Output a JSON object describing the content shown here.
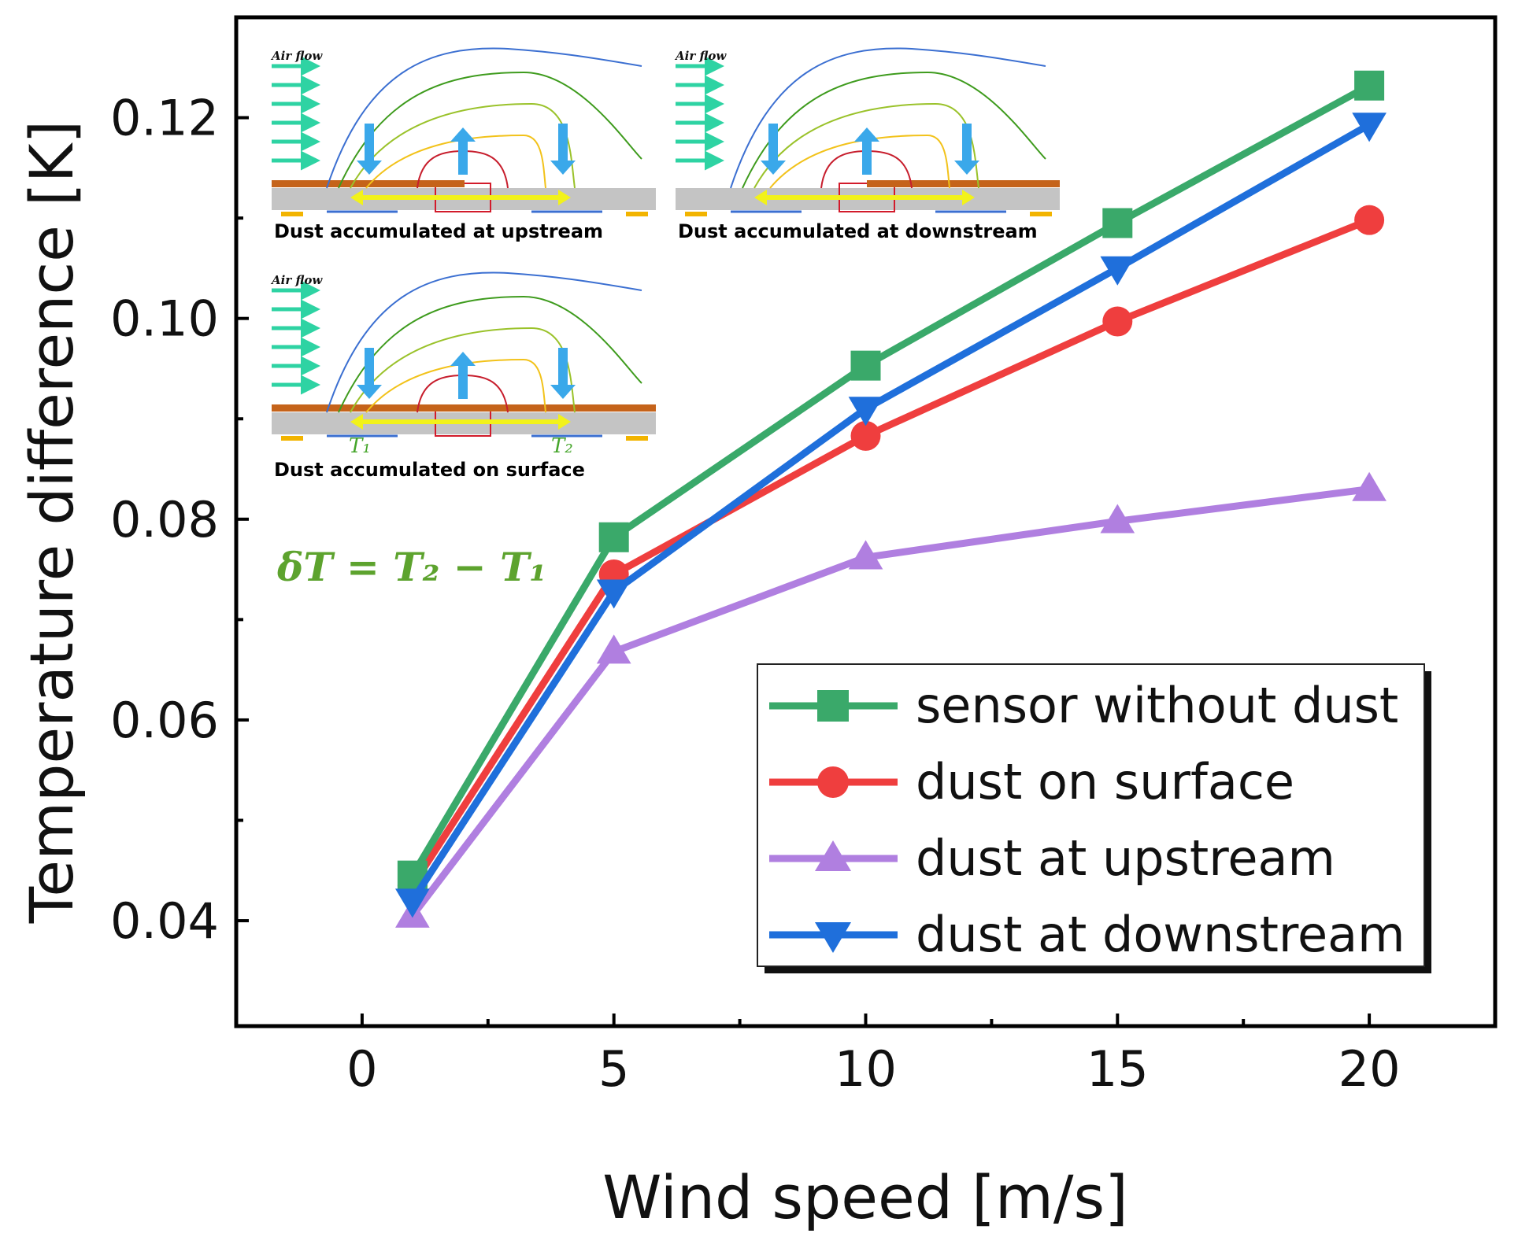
{
  "chart_data": {
    "type": "line",
    "title": "",
    "xlabel": "Wind speed [m/s]",
    "ylabel": "Temperature difference [K]",
    "xlim": [
      -2.5,
      22.5
    ],
    "ylim": [
      0.0295,
      0.13
    ],
    "x_ticks": [
      "0",
      "5",
      "10",
      "15",
      "20"
    ],
    "y_ticks": [
      "0.04",
      "0.06",
      "0.08",
      "0.10",
      "0.12"
    ],
    "x": [
      1,
      5,
      10,
      15,
      20
    ],
    "series": [
      {
        "name": "sensor without dust",
        "color": "#3aa96a",
        "marker": "square",
        "values": [
          0.0445,
          0.0782,
          0.0953,
          0.1095,
          0.1232
        ]
      },
      {
        "name": "dust on surface",
        "color": "#ef3e3e",
        "marker": "circle",
        "values": [
          0.0435,
          0.0745,
          0.0883,
          0.0997,
          0.1098
        ]
      },
      {
        "name": "dust at upstream",
        "color": "#b07fe0",
        "marker": "triangle-up",
        "values": [
          0.0405,
          0.0668,
          0.0762,
          0.0798,
          0.083
        ]
      },
      {
        "name": "dust at downstream",
        "color": "#1f6fdb",
        "marker": "triangle-down",
        "values": [
          0.042,
          0.0728,
          0.091,
          0.105,
          0.1193
        ]
      }
    ],
    "legend_position": "lower-right",
    "annotations": {
      "formula": "δT = T₂ − T₁",
      "panels": [
        {
          "title": "Dust accumulated at upstream",
          "color": "#b07fe0",
          "airflow": "Air flow"
        },
        {
          "title": "Dust accumulated at downstream",
          "color": "#1f6fdb",
          "airflow": "Air flow"
        },
        {
          "title": "Dust accumulated on surface",
          "color": "#ef3e3e",
          "airflow": "Air flow",
          "t1": "T₁",
          "t2": "T₂"
        }
      ]
    }
  },
  "colors": {
    "airflow": "#2ed3a3",
    "cooling_arrow": "#3aa8ea",
    "heat_arrow": "#f2f21a",
    "dust": "#c5631a",
    "substrate": "#c4c4c4"
  }
}
